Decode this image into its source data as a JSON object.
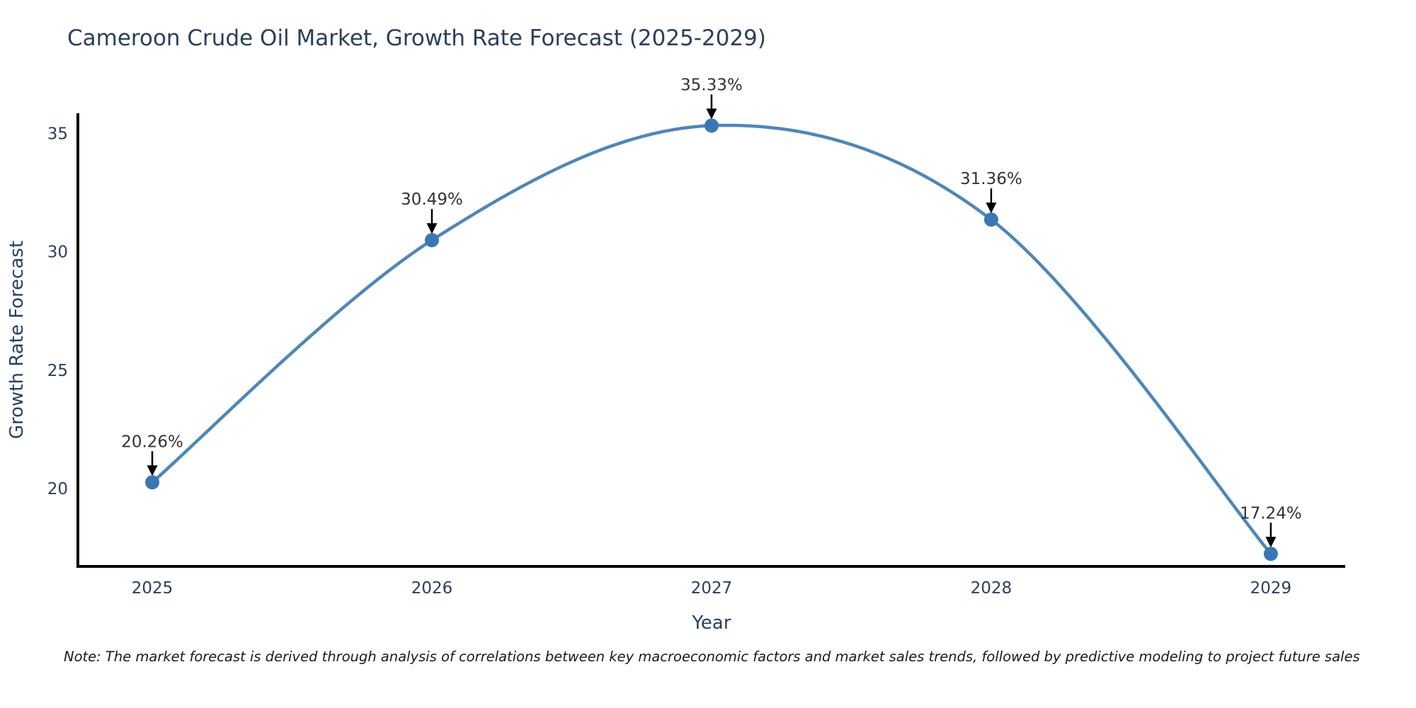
{
  "chart": {
    "title": "Cameroon Crude Oil Market, Growth Rate Forecast (2025-2029)"
  },
  "note": {
    "text": "Note: The market forecast is derived through analysis of correlations between key macroeconomic factors and market sales trends, followed by predictive modeling to project future sales"
  },
  "chart_data": {
    "type": "line",
    "title": "Cameroon Crude Oil Market, Growth Rate Forecast (2025-2029)",
    "x": [
      2025,
      2026,
      2027,
      2028,
      2029
    ],
    "values": [
      20.26,
      30.49,
      35.33,
      31.36,
      17.24
    ],
    "point_labels": [
      "20.26%",
      "30.49%",
      "35.33%",
      "31.36%",
      "17.24%"
    ],
    "xlabel": "Year",
    "ylabel": "Growth Rate Forecast",
    "xticks": [
      2025,
      2026,
      2027,
      2028,
      2029
    ],
    "yticks": [
      20,
      25,
      30,
      35
    ],
    "xlim": [
      2024.734,
      2029.266
    ],
    "ylim": [
      16.71,
      35.85
    ],
    "grid": false,
    "legend": "none",
    "line_shape": "spline",
    "colors": {
      "line": "#4c87ba",
      "marker": "#3978b5",
      "axis": "#000000",
      "tick_text": "#2a3f5f",
      "annotation_text": "#333333",
      "arrow": "#000000",
      "background": "#ffffff"
    }
  }
}
